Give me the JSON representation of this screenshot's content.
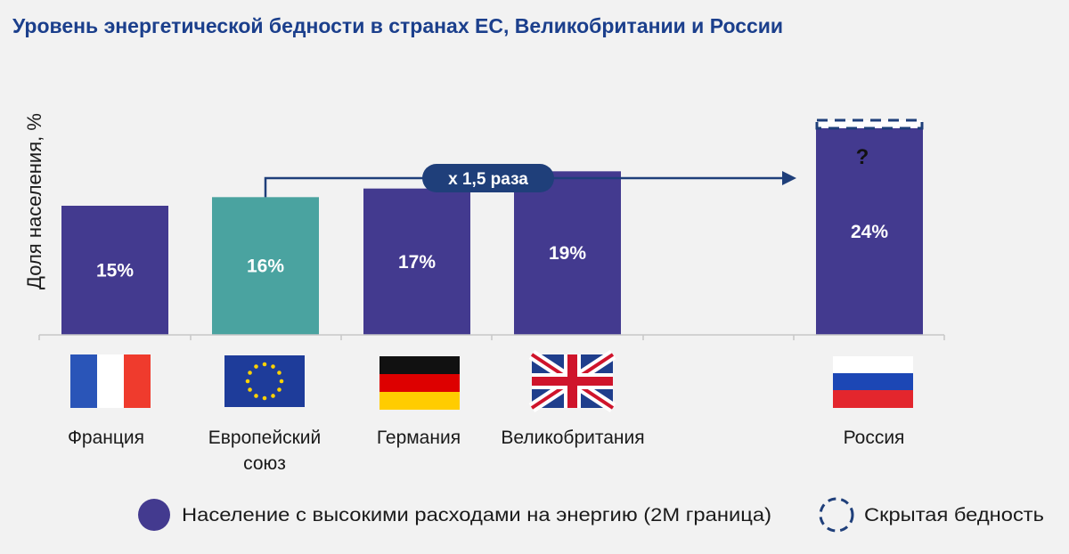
{
  "title": "Уровень энергетической бедности в странах ЕС, Великобритании и России",
  "chart_data": {
    "type": "bar",
    "ylabel": "Доля населения, %",
    "ylim": [
      0,
      30
    ],
    "categories": [
      "Франция",
      "Европейский союз",
      "Германия",
      "Великобритания",
      "Россия"
    ],
    "values": [
      15,
      16,
      17,
      19,
      24
    ],
    "data_labels": [
      "15%",
      "16%",
      "17%",
      "19%",
      "24%"
    ],
    "bar_colors": [
      "#433a8f",
      "#4aa3a0",
      "#433a8f",
      "#433a8f",
      "#433a8f"
    ],
    "hidden_poverty": {
      "category": "Россия",
      "label": "?"
    },
    "annotation": {
      "text": "x 1,5 раза",
      "from": "Европейский союз",
      "to": "Россия"
    },
    "legend": [
      {
        "label": "Население с высокими расходами на энергию (2M граница)",
        "style": "solid",
        "color": "#433a8f"
      },
      {
        "label": "Скрытая бедность",
        "style": "dashed",
        "color": "#1f3f7a"
      }
    ]
  },
  "flags": [
    "france-flag",
    "eu-flag",
    "germany-flag",
    "uk-flag",
    "russia-flag"
  ],
  "colors": {
    "title": "#1b3f8c",
    "arrow": "#1f3f7a",
    "badge": "#1f3f7a"
  }
}
